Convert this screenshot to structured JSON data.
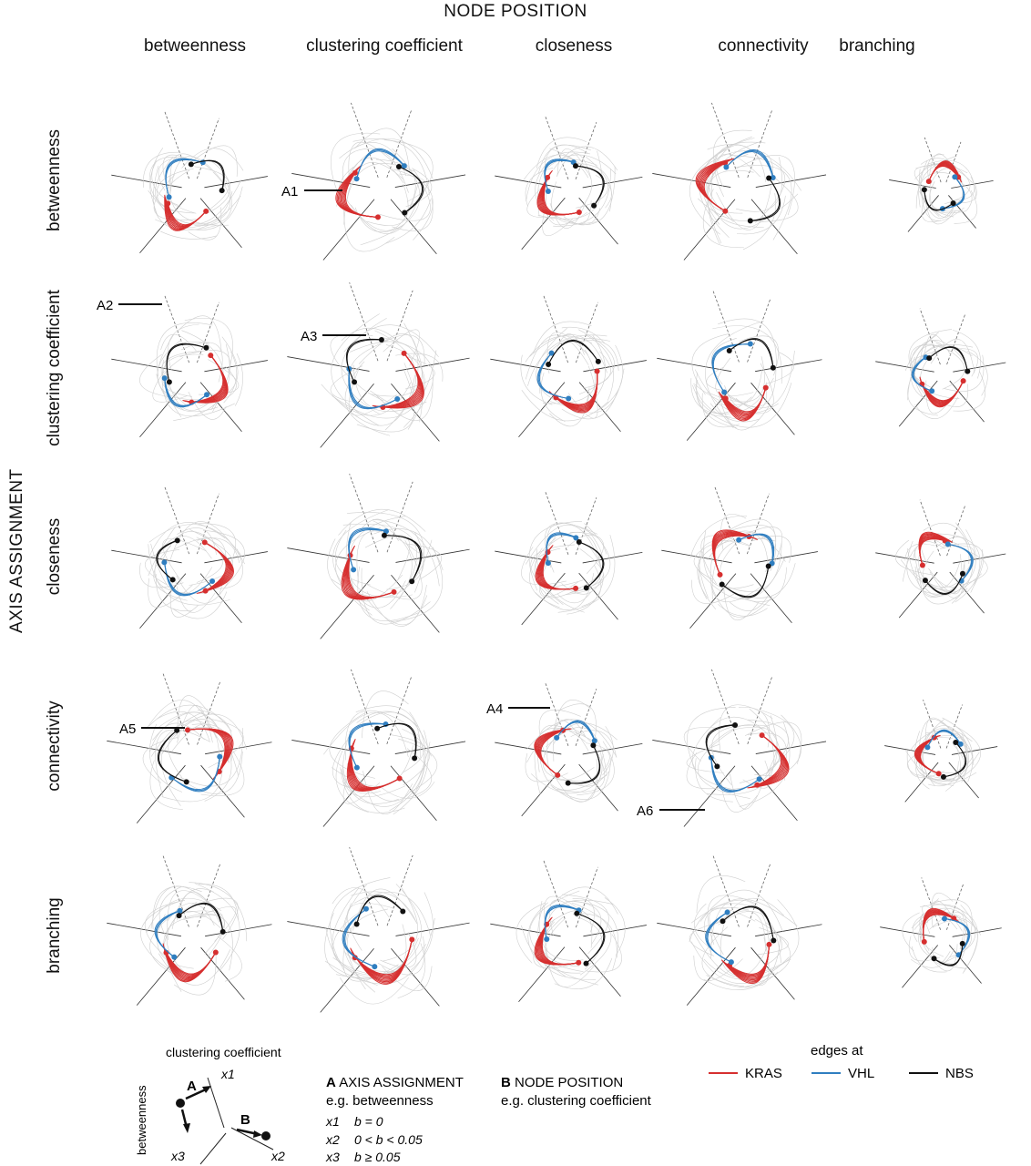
{
  "title": "NODE POSITION",
  "axis_title": "AXIS ASSIGNMENT",
  "columns": [
    "betweenness",
    "clustering coefficient",
    "closeness",
    "connectivity",
    "branching"
  ],
  "rows": [
    "betweenness",
    "clustering coefficient",
    "closeness",
    "connectivity",
    "branching"
  ],
  "callouts": [
    "A1",
    "A2",
    "A3",
    "A4",
    "A5",
    "A6"
  ],
  "colors": {
    "KRAS": "#d62f2f",
    "VHL": "#2f7ec0",
    "NBS": "#111111",
    "background_edges": "#cfcfcf"
  },
  "legend": {
    "title": "edges at",
    "entries": [
      "KRAS",
      "VHL",
      "NBS"
    ]
  },
  "key": {
    "top_label": "clustering coefficient",
    "side_label": "betweenness",
    "axis_labels": [
      "x1",
      "x2",
      "x3"
    ],
    "arrow_labels": [
      "A",
      "B"
    ],
    "a_heading_letter": "A",
    "a_heading": "AXIS ASSIGNMENT",
    "a_example": "e.g. betweenness",
    "b_heading_letter": "B",
    "b_heading": "NODE POSITION",
    "b_example": "e.g. clustering coefficient",
    "rules": [
      {
        "axis": "x1",
        "rule": "b = 0"
      },
      {
        "axis": "x2",
        "rule": "0 < b < 0.05"
      },
      {
        "axis": "x3",
        "rule": "b ≥ 0.05"
      }
    ]
  }
}
